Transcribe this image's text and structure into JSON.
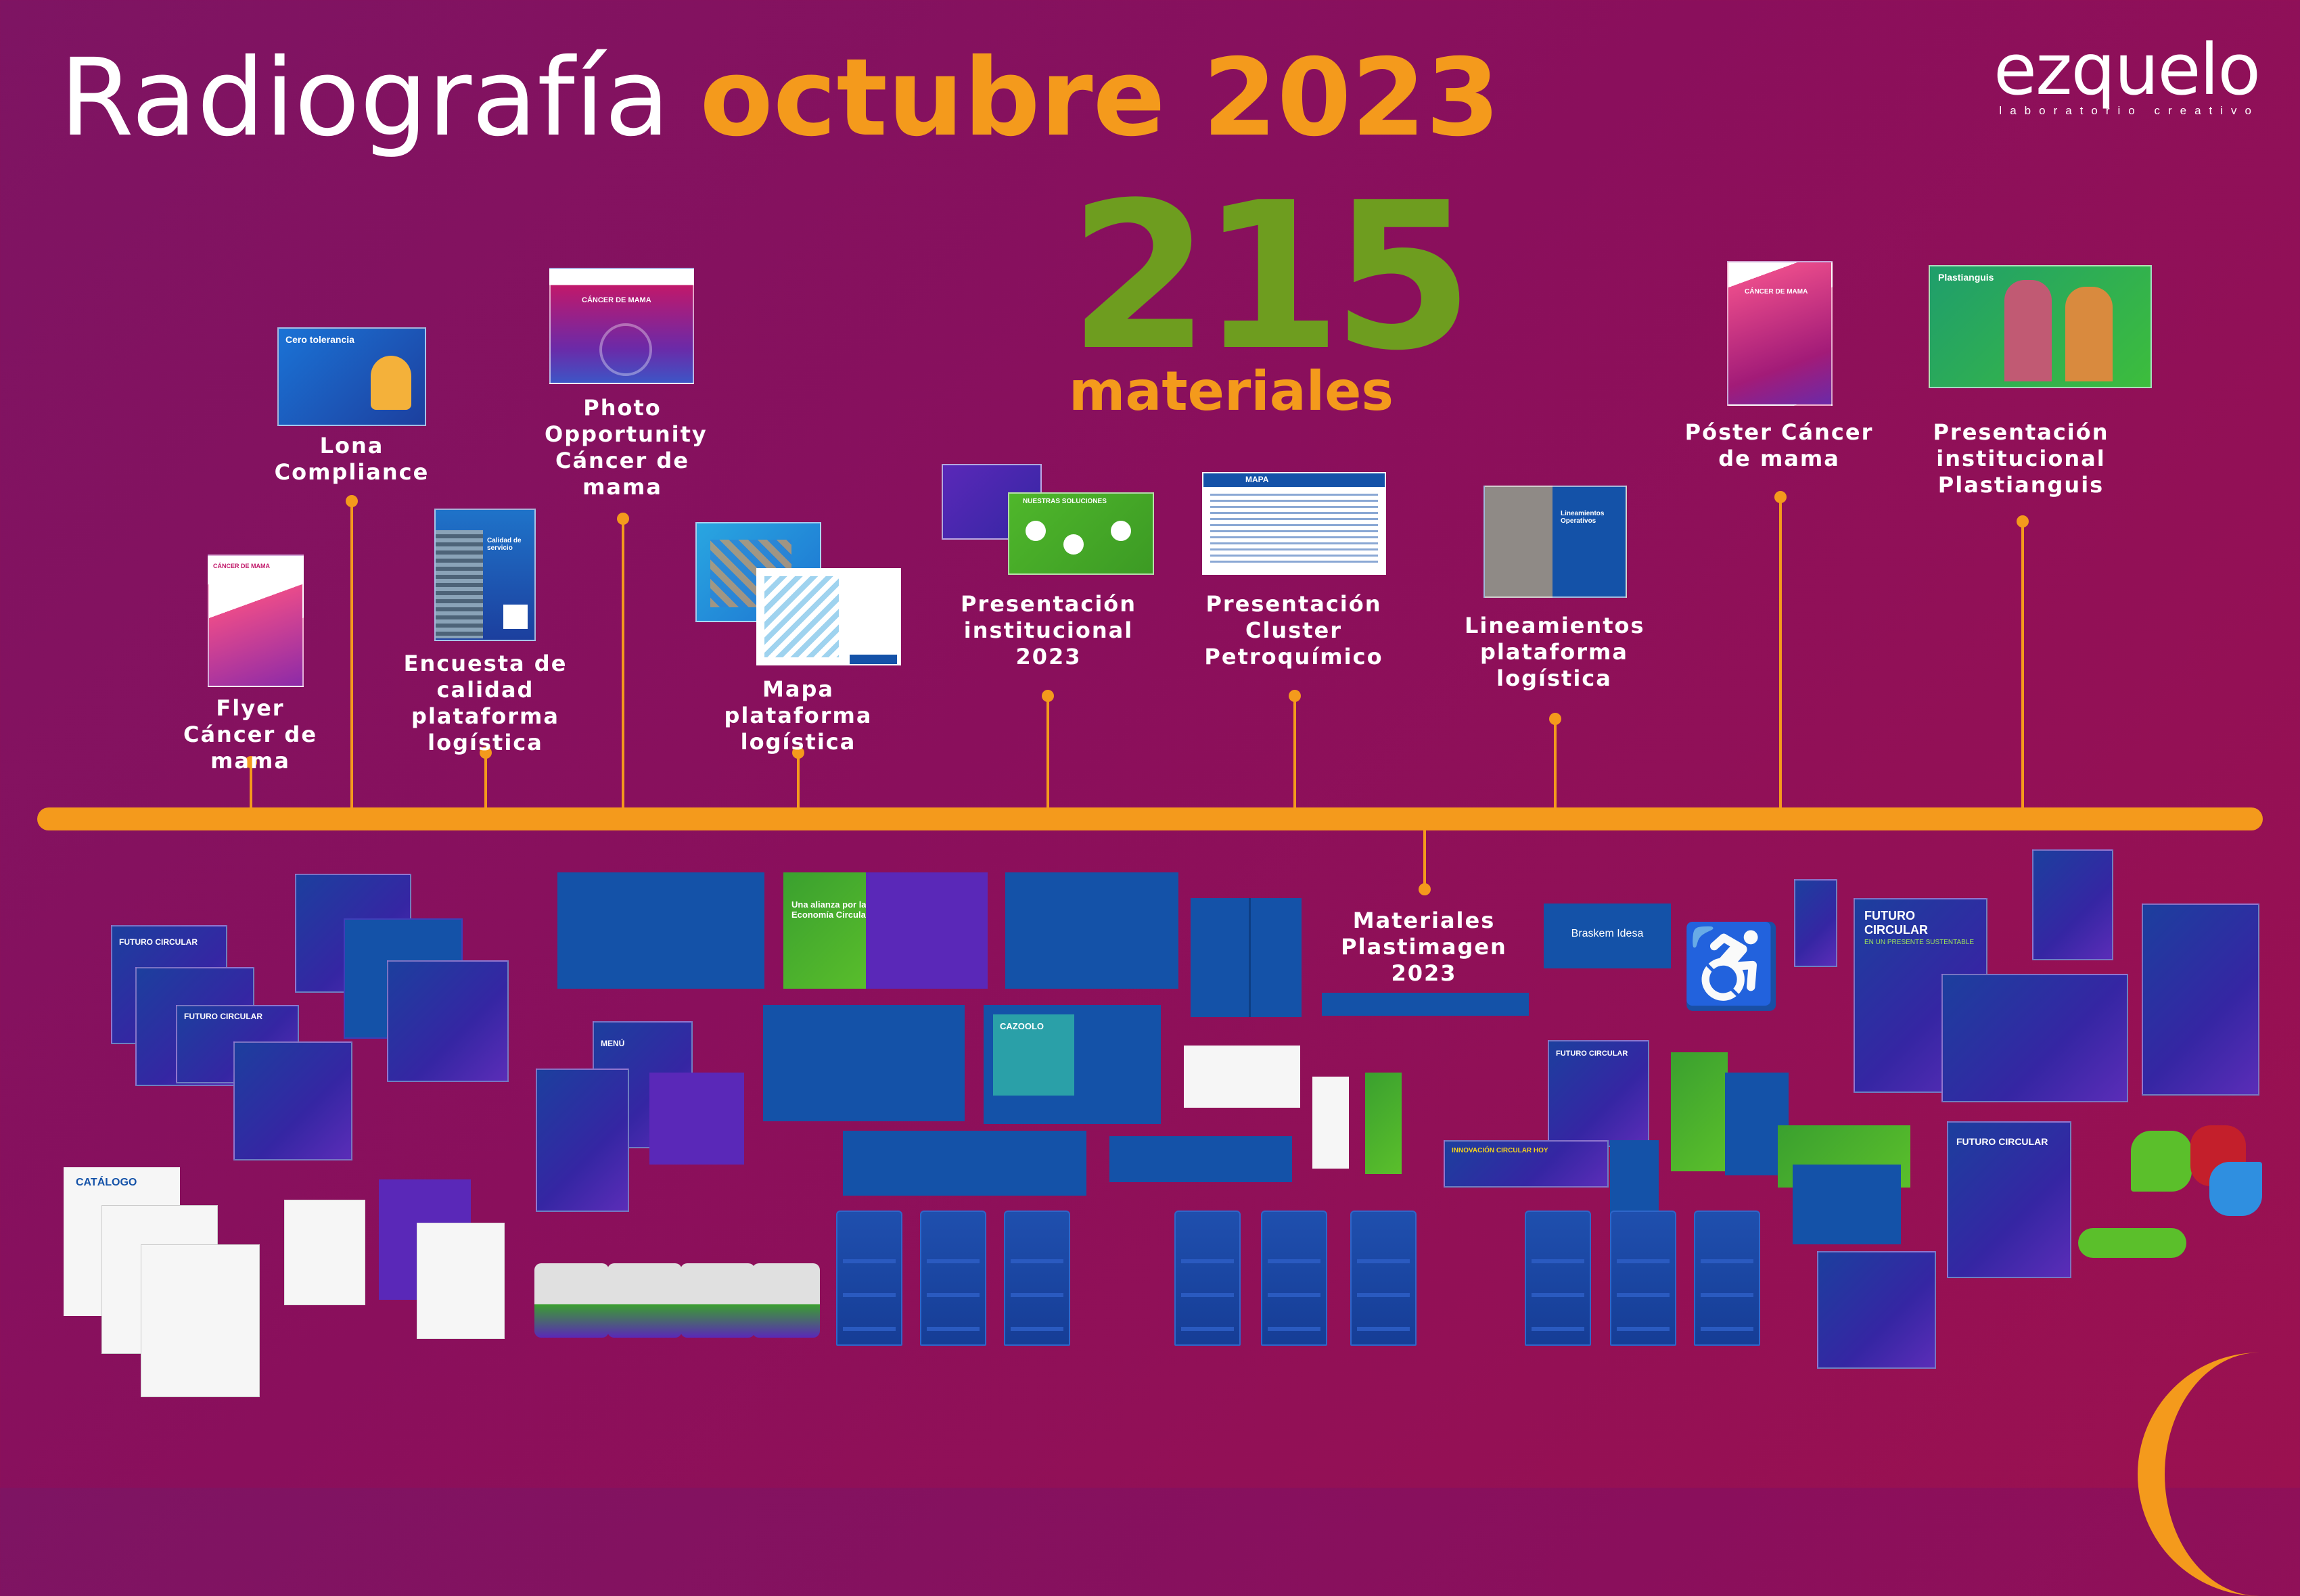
{
  "header": {
    "title_prefix": "Radiografía",
    "title_highlight": "octubre 2023"
  },
  "logo": {
    "name": "ezquelo",
    "tagline": "laboratorio creativo"
  },
  "summary": {
    "count": "215",
    "unit": "materiales"
  },
  "timeline_items": [
    {
      "label": "Flyer Cáncer de mama"
    },
    {
      "label": "Lona Compliance"
    },
    {
      "label": "Encuesta de calidad plataforma logística"
    },
    {
      "label": "Photo Opportunity Cáncer de mama"
    },
    {
      "label": "Mapa plataforma logística"
    },
    {
      "label": "Presentación institucional 2023"
    },
    {
      "label": "Presentación Cluster Petroquímico"
    },
    {
      "label": "Lineamientos plataforma logística"
    },
    {
      "label": "Póster Cáncer de mama"
    },
    {
      "label": "Presentación institucional Plastianguis"
    },
    {
      "label": "Materiales Plastimagen 2023"
    }
  ],
  "thumbnail_text": {
    "tolerancia": "Cero tolerancia",
    "cancer_mama": "CÁNCER DE MAMA",
    "calidad_servicio": "Calidad de servicio",
    "plastianguis": "Plastianguis",
    "lineamientos": "Lineamientos Operativos",
    "mapa": "MAPA",
    "futuro_circular": "FUTURO CIRCULAR",
    "presente_sustentable": "EN UN PRESENTE SUSTENTABLE",
    "braskem": "Braskem Idesa",
    "catalogo": "CATÁLOGO",
    "alianza": "Una alianza por la Economía Circular",
    "cazoolo": "CAZOOLO",
    "menu": "MENÚ",
    "innovacion_hoy": "INNOVACIÓN CIRCULAR HOY",
    "nuestras_soluciones": "NUESTRAS SOLUCIONES"
  },
  "colors": {
    "background": "#8a0f5c",
    "accent_orange": "#f49a1c",
    "accent_green": "#6e9d1f",
    "brand_blue": "#1452a8"
  }
}
